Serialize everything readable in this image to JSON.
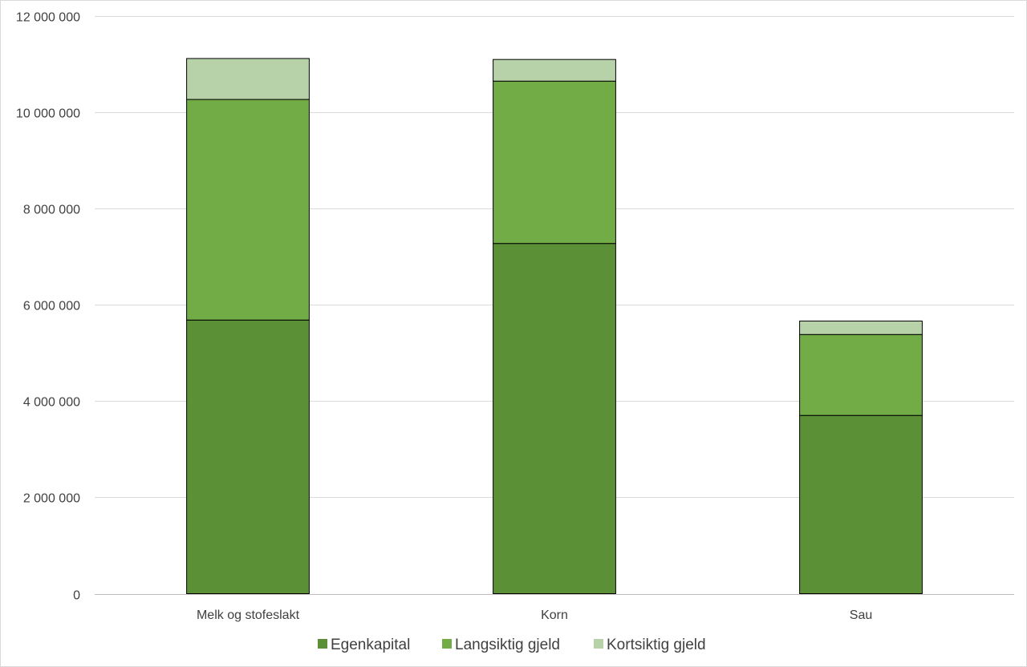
{
  "chart_data": {
    "type": "bar",
    "stacked": true,
    "categories": [
      "Melk og stofeslakt",
      "Korn",
      "Sau"
    ],
    "series": [
      {
        "name": "Egenkapital",
        "color": "#5b9037",
        "values": [
          5680000,
          7270000,
          3700000
        ]
      },
      {
        "name": "Langsiktig gjeld",
        "color": "#71ac47",
        "values": [
          4580000,
          3370000,
          1680000
        ]
      },
      {
        "name": "Kortsiktig gjeld",
        "color": "#b7d2a9",
        "values": [
          850000,
          450000,
          280000
        ]
      }
    ],
    "ylim": [
      0,
      12000000
    ],
    "yticks": [
      0,
      2000000,
      4000000,
      6000000,
      8000000,
      10000000,
      12000000
    ],
    "ytick_labels": [
      "0",
      "2 000 000",
      "4 000 000",
      "6 000 000",
      "8 000 000",
      "10 000 000",
      "12 000 000"
    ],
    "grid": true,
    "legend_position": "bottom",
    "title": "",
    "xlabel": "",
    "ylabel": ""
  }
}
